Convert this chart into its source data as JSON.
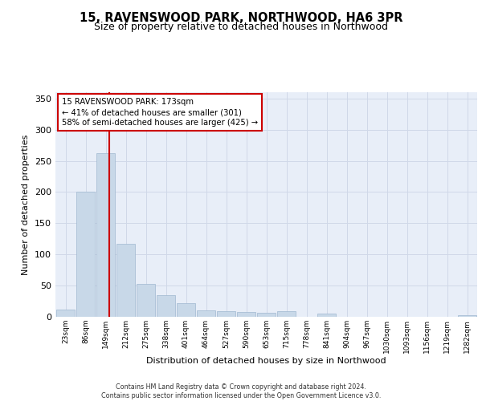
{
  "title": "15, RAVENSWOOD PARK, NORTHWOOD, HA6 3PR",
  "subtitle": "Size of property relative to detached houses in Northwood",
  "xlabel": "Distribution of detached houses by size in Northwood",
  "ylabel": "Number of detached properties",
  "bin_labels": [
    "23sqm",
    "86sqm",
    "149sqm",
    "212sqm",
    "275sqm",
    "338sqm",
    "401sqm",
    "464sqm",
    "527sqm",
    "590sqm",
    "653sqm",
    "715sqm",
    "778sqm",
    "841sqm",
    "904sqm",
    "967sqm",
    "1030sqm",
    "1093sqm",
    "1156sqm",
    "1219sqm",
    "1282sqm"
  ],
  "bar_heights": [
    11,
    200,
    262,
    117,
    53,
    35,
    22,
    10,
    9,
    8,
    7,
    9,
    0,
    5,
    0,
    0,
    0,
    0,
    0,
    0,
    3
  ],
  "bar_color": "#c8d8e8",
  "bar_edgecolor": "#a0b8d0",
  "grid_color": "#d0d8e8",
  "background_color": "#e8eef8",
  "property_line_x": 2.18,
  "annotation_text": "15 RAVENSWOOD PARK: 173sqm\n← 41% of detached houses are smaller (301)\n58% of semi-detached houses are larger (425) →",
  "annotation_box_color": "#ffffff",
  "annotation_box_edgecolor": "#cc0000",
  "property_line_color": "#cc0000",
  "ylim": [
    0,
    360
  ],
  "yticks": [
    0,
    50,
    100,
    150,
    200,
    250,
    300,
    350
  ],
  "footer_line1": "Contains HM Land Registry data © Crown copyright and database right 2024.",
  "footer_line2": "Contains public sector information licensed under the Open Government Licence v3.0."
}
